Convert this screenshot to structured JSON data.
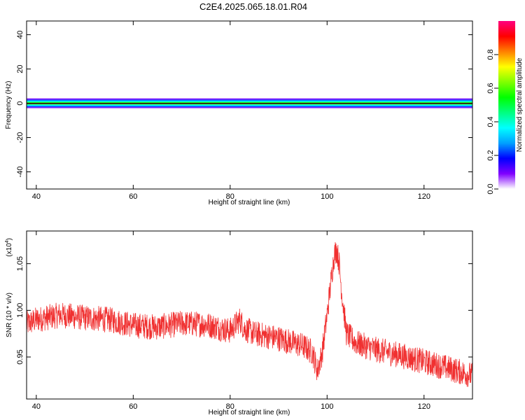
{
  "title": "C2E4.2025.065.18.01.R04",
  "chart_data": [
    {
      "type": "heatmap",
      "xlabel": "Height of straight line (km)",
      "ylabel": "Frequency (Hz)",
      "xlim": [
        38,
        130
      ],
      "ylim": [
        -50,
        48
      ],
      "xticks": [
        "40",
        "60",
        "80",
        "100",
        "120"
      ],
      "xtick_values": [
        40,
        60,
        80,
        100,
        120
      ],
      "yticks": [
        "40",
        "20",
        "0",
        "-20",
        "-40"
      ],
      "ytick_values": [
        40,
        20,
        0,
        -20,
        -40
      ],
      "band_center_hz": 0,
      "band_halfwidth_hz": [
        0,
        0.5,
        1.0,
        1.5,
        2.0,
        2.5,
        3.0
      ],
      "band_halfwidth_levels": [
        0.95,
        0.6,
        0.45,
        0.35,
        0.25,
        0.12,
        0.05
      ],
      "colorbar": {
        "label": "Normalized spectral amplitude",
        "ticks": [
          "0.0",
          "0.2",
          "0.4",
          "0.6",
          "0.8"
        ],
        "tick_values": [
          0.0,
          0.2,
          0.4,
          0.6,
          0.8
        ],
        "range": [
          0,
          1
        ],
        "colors": [
          "#ffffff",
          "#8000ff",
          "#0000ff",
          "#00a0ff",
          "#00ffff",
          "#00ff80",
          "#00ff00",
          "#80ff00",
          "#ffff00",
          "#ff8000",
          "#ff0000",
          "#ff0080"
        ]
      }
    },
    {
      "type": "line",
      "xlabel": "Height of straight line (km)",
      "ylabel": "SNR (10 * v/v)",
      "multiplier": "(x10",
      "multiplier_exp": "4",
      "xlim": [
        38,
        130
      ],
      "ylim": [
        0.905,
        1.085
      ],
      "xticks": [
        "40",
        "60",
        "80",
        "100",
        "120"
      ],
      "xtick_values": [
        40,
        60,
        80,
        100,
        120
      ],
      "yticks": [
        "1.05",
        "1.00",
        "0.95"
      ],
      "ytick_values": [
        1.05,
        1.0,
        0.95
      ],
      "series": [
        {
          "color": "#f03030",
          "x": [
            38,
            40,
            45,
            50,
            55,
            60,
            65,
            70,
            75,
            80,
            82,
            83,
            85,
            90,
            95,
            97,
            98,
            99,
            100,
            101,
            101.5,
            102,
            102.5,
            103,
            104,
            106,
            110,
            115,
            120,
            125,
            130
          ],
          "y": [
            0.985,
            0.99,
            0.995,
            0.992,
            0.99,
            0.984,
            0.982,
            0.986,
            0.985,
            0.978,
            0.99,
            0.98,
            0.975,
            0.97,
            0.962,
            0.955,
            0.935,
            0.955,
            0.995,
            1.04,
            1.06,
            1.065,
            1.05,
            1.02,
            0.975,
            0.965,
            0.958,
            0.952,
            0.945,
            0.938,
            0.93
          ],
          "noise_amplitude": 0.014
        }
      ]
    }
  ]
}
